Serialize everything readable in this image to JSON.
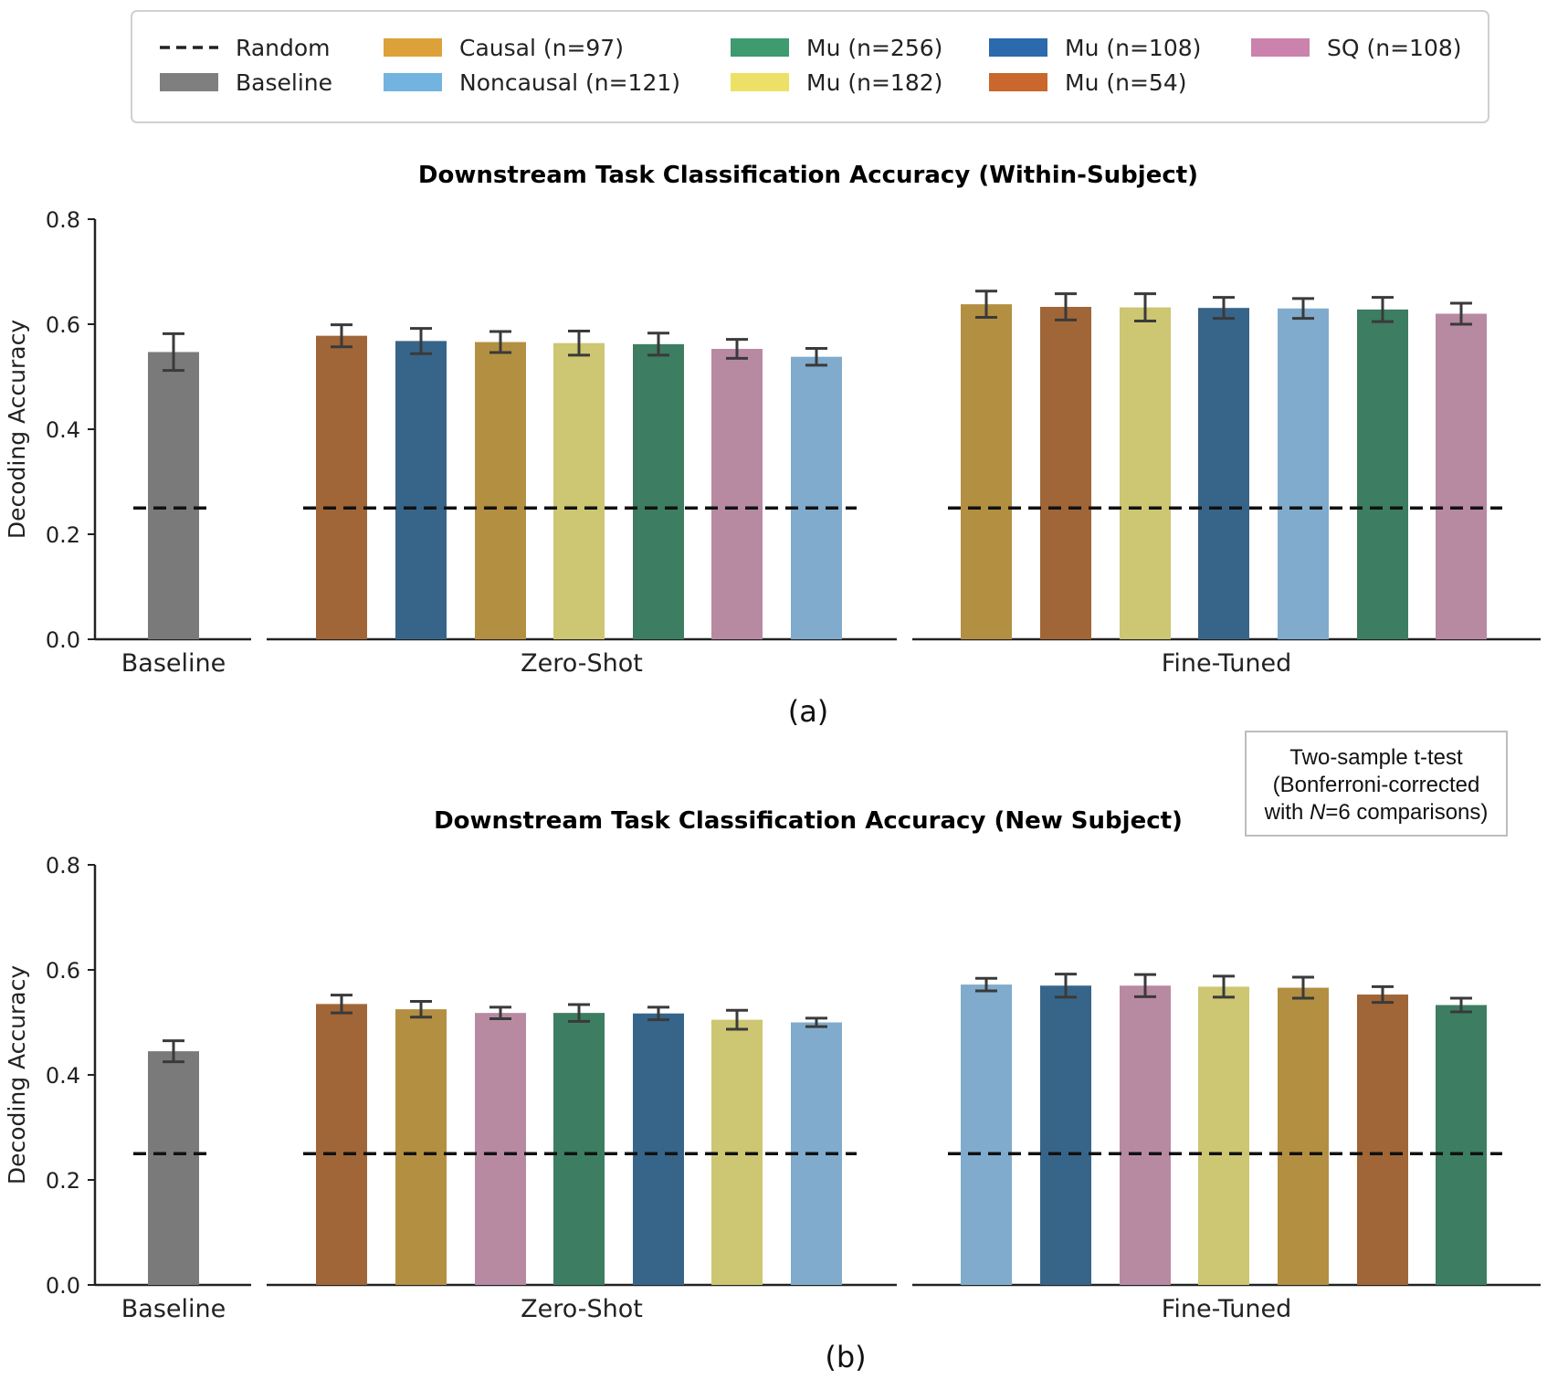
{
  "legend": {
    "items": [
      {
        "label": "Random",
        "kind": "dash",
        "color": "#222222"
      },
      {
        "label": "Baseline",
        "kind": "patch",
        "color": "#7f7f7f"
      },
      {
        "label": "Causal (n=97)",
        "kind": "patch",
        "color": "#dca138"
      },
      {
        "label": "Noncausal (n=121)",
        "kind": "patch",
        "color": "#72b3e0"
      },
      {
        "label": "Mu (n=256)",
        "kind": "patch",
        "color": "#3e9a6f"
      },
      {
        "label": "Mu (n=182)",
        "kind": "patch",
        "color": "#ece166"
      },
      {
        "label": "Mu (n=108)",
        "kind": "patch",
        "color": "#2b6aad"
      },
      {
        "label": "Mu (n=54)",
        "kind": "patch",
        "color": "#c9672c"
      },
      {
        "label": "SQ (n=108)",
        "kind": "patch",
        "color": "#cb82ad"
      }
    ]
  },
  "colors": {
    "Baseline": "#7a7a7a",
    "Causal": "#b38f42",
    "Noncausal": "#80abcc",
    "Mu256": "#3d7d62",
    "Mu182": "#cdc672",
    "Mu108": "#376589",
    "Mu54": "#a06638",
    "SQ108": "#b78aa2",
    "random_line": "#111111",
    "errorbar": "#3a3a3a"
  },
  "stat_note": {
    "line1": "Two-sample t-test",
    "line2": "(Bonferroni-corrected",
    "line3_prefix": "with ",
    "line3_italic": "N",
    "line3_suffix": "=6 comparisons)"
  },
  "chart_data": [
    {
      "type": "bar",
      "title": "Downstream Task Classification Accuracy (Within-Subject)",
      "caption": "(a)",
      "ylabel": "Decoding Accuracy",
      "ylim": [
        0,
        0.8
      ],
      "yticks": [
        "0.0",
        "0.2",
        "0.4",
        "0.6",
        "0.8"
      ],
      "random_chance": 0.25,
      "groups": [
        {
          "label": "Baseline",
          "bars": [
            {
              "model": "Baseline",
              "value": 0.547,
              "err": 0.035
            }
          ]
        },
        {
          "label": "Zero-Shot",
          "bars": [
            {
              "model": "Mu54",
              "value": 0.578,
              "err": 0.021
            },
            {
              "model": "Mu108",
              "value": 0.568,
              "err": 0.024
            },
            {
              "model": "Causal",
              "value": 0.566,
              "err": 0.02
            },
            {
              "model": "Mu182",
              "value": 0.564,
              "err": 0.023
            },
            {
              "model": "Mu256",
              "value": 0.562,
              "err": 0.021
            },
            {
              "model": "SQ108",
              "value": 0.553,
              "err": 0.018
            },
            {
              "model": "Noncausal",
              "value": 0.538,
              "err": 0.016
            }
          ]
        },
        {
          "label": "Fine-Tuned",
          "bars": [
            {
              "model": "Causal",
              "value": 0.638,
              "err": 0.025
            },
            {
              "model": "Mu54",
              "value": 0.633,
              "err": 0.025
            },
            {
              "model": "Mu182",
              "value": 0.632,
              "err": 0.026
            },
            {
              "model": "Mu108",
              "value": 0.631,
              "err": 0.02
            },
            {
              "model": "Noncausal",
              "value": 0.63,
              "err": 0.019
            },
            {
              "model": "Mu256",
              "value": 0.628,
              "err": 0.023
            },
            {
              "model": "SQ108",
              "value": 0.62,
              "err": 0.02
            }
          ]
        }
      ]
    },
    {
      "type": "bar",
      "title": "Downstream Task Classification Accuracy (New Subject)",
      "caption": "(b)",
      "ylabel": "Decoding Accuracy",
      "ylim": [
        0,
        0.8
      ],
      "yticks": [
        "0.0",
        "0.2",
        "0.4",
        "0.6",
        "0.8"
      ],
      "random_chance": 0.25,
      "groups": [
        {
          "label": "Baseline",
          "bars": [
            {
              "model": "Baseline",
              "value": 0.445,
              "err": 0.02
            }
          ]
        },
        {
          "label": "Zero-Shot",
          "bars": [
            {
              "model": "Mu54",
              "value": 0.535,
              "err": 0.017
            },
            {
              "model": "Causal",
              "value": 0.525,
              "err": 0.015
            },
            {
              "model": "SQ108",
              "value": 0.518,
              "err": 0.011
            },
            {
              "model": "Mu256",
              "value": 0.518,
              "err": 0.016
            },
            {
              "model": "Mu108",
              "value": 0.517,
              "err": 0.012
            },
            {
              "model": "Mu182",
              "value": 0.505,
              "err": 0.018
            },
            {
              "model": "Noncausal",
              "value": 0.5,
              "err": 0.008
            }
          ]
        },
        {
          "label": "Fine-Tuned",
          "bars": [
            {
              "model": "Noncausal",
              "value": 0.572,
              "err": 0.012
            },
            {
              "model": "Mu108",
              "value": 0.57,
              "err": 0.022
            },
            {
              "model": "SQ108",
              "value": 0.57,
              "err": 0.021
            },
            {
              "model": "Mu182",
              "value": 0.568,
              "err": 0.02
            },
            {
              "model": "Causal",
              "value": 0.566,
              "err": 0.02
            },
            {
              "model": "Mu54",
              "value": 0.553,
              "err": 0.015
            },
            {
              "model": "Mu256",
              "value": 0.533,
              "err": 0.013
            }
          ]
        }
      ]
    }
  ]
}
